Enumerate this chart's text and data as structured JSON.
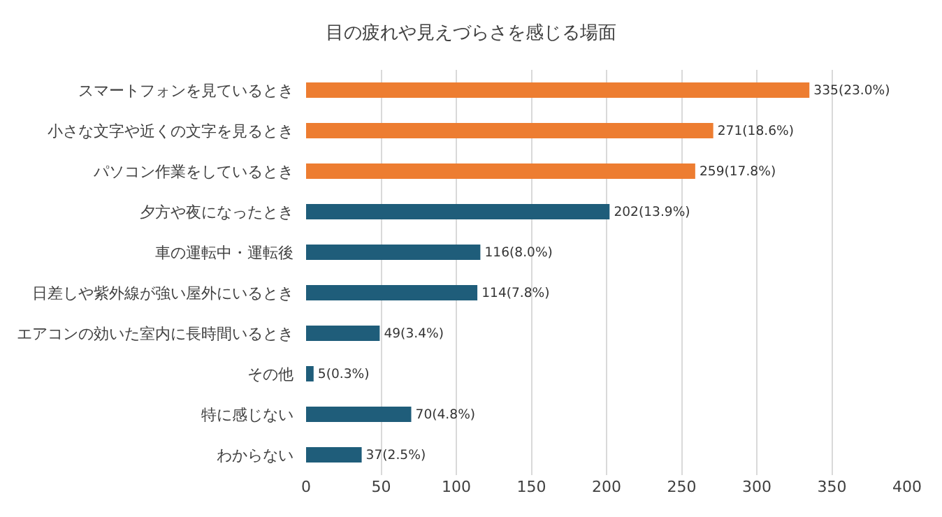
{
  "chart_data": {
    "type": "bar",
    "orientation": "horizontal",
    "title": "目の疲れや見えづらさを感じる場面",
    "categories": [
      "スマートフォンを見ているとき",
      "小さな文字や近くの文字を見るとき",
      "パソコン作業をしているとき",
      "夕方や夜になったとき",
      "車の運転中・運転後",
      "日差しや紫外線が強い屋外にいるとき",
      "エアコンの効いた室内に長時間いるとき",
      "その他",
      "特に感じない",
      "わからない"
    ],
    "values": [
      335,
      271,
      259,
      202,
      116,
      114,
      49,
      5,
      70,
      37
    ],
    "value_labels": [
      "335(23.0%)",
      "271(18.6%)",
      "259(17.8%)",
      "202(13.9%)",
      "116(8.0%)",
      "114(7.8%)",
      "49(3.4%)",
      "5(0.3%)",
      "70(4.8%)",
      "37(2.5%)"
    ],
    "colors": [
      "#ed7d31",
      "#ed7d31",
      "#ed7d31",
      "#1f5d7a",
      "#1f5d7a",
      "#1f5d7a",
      "#1f5d7a",
      "#1f5d7a",
      "#1f5d7a",
      "#1f5d7a"
    ],
    "xlim": [
      0,
      400
    ],
    "xticks": [
      0,
      50,
      100,
      150,
      200,
      250,
      300,
      350,
      400
    ],
    "grid": "x"
  }
}
